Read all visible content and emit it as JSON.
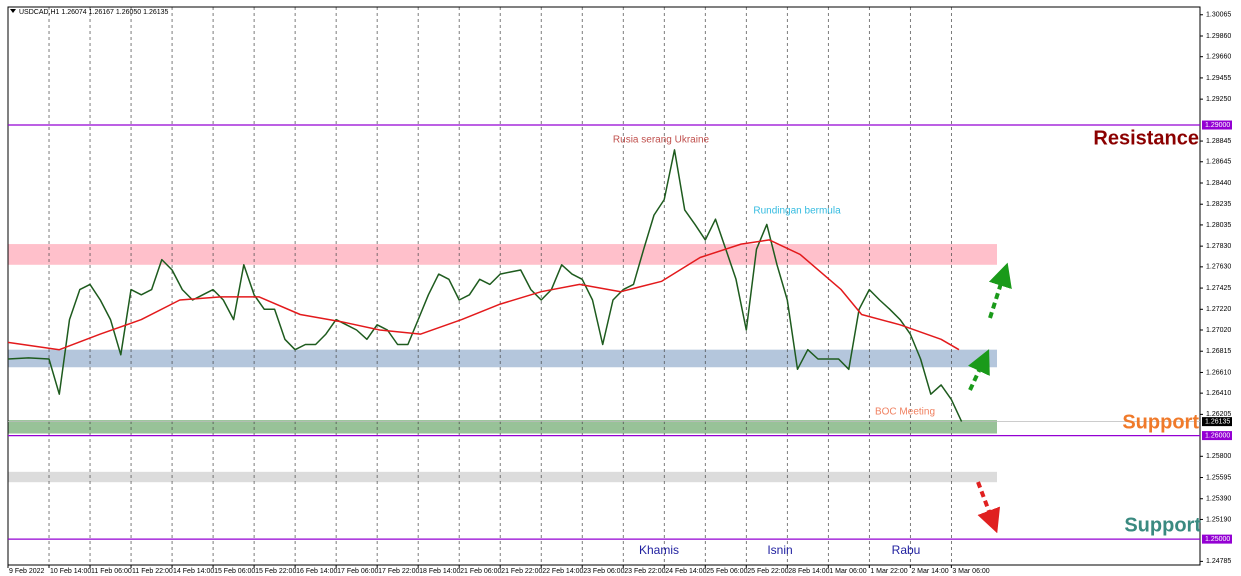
{
  "chart_data": {
    "type": "line",
    "title": "USDCAD,H1  1.26074 1.26167 1.26050 1.26135",
    "xlim": [
      0,
      465
    ],
    "ylim": [
      1.2475,
      1.3014
    ],
    "xticks": [
      {
        "value": 0,
        "label": "9 Feb 2022"
      },
      {
        "value": 16,
        "label": "10 Feb 14:00"
      },
      {
        "value": 32,
        "label": "11 Feb 06:00"
      },
      {
        "value": 48,
        "label": "11 Feb 22:00"
      },
      {
        "value": 64,
        "label": "14 Feb 14:00"
      },
      {
        "value": 80,
        "label": "15 Feb 06:00"
      },
      {
        "value": 96,
        "label": "15 Feb 22:00"
      },
      {
        "value": 112,
        "label": "16 Feb 14:00"
      },
      {
        "value": 128,
        "label": "17 Feb 06:00"
      },
      {
        "value": 144,
        "label": "17 Feb 22:00"
      },
      {
        "value": 160,
        "label": "18 Feb 14:00"
      },
      {
        "value": 176,
        "label": "21 Feb 06:00"
      },
      {
        "value": 192,
        "label": "21 Feb 22:00"
      },
      {
        "value": 208,
        "label": "22 Feb 14:00"
      },
      {
        "value": 224,
        "label": "23 Feb 06:00"
      },
      {
        "value": 240,
        "label": "23 Feb 22:00"
      },
      {
        "value": 256,
        "label": "24 Feb 14:00"
      },
      {
        "value": 272,
        "label": "25 Feb 06:00"
      },
      {
        "value": 288,
        "label": "25 Feb 22:00"
      },
      {
        "value": 304,
        "label": "28 Feb 14:00"
      },
      {
        "value": 320,
        "label": "1 Mar 06:00"
      },
      {
        "value": 336,
        "label": "1 Mar 22:00"
      },
      {
        "value": 352,
        "label": "2 Mar 14:00"
      },
      {
        "value": 368,
        "label": "3 Mar 06:00"
      }
    ],
    "yticks": [
      1.30065,
      {
        "value": 1.2986,
        "label": "1.29860"
      },
      {
        "value": 1.2966,
        "label": "1.29660"
      },
      1.29455,
      {
        "value": 1.2925,
        "label": "1.29250"
      },
      1.28845,
      1.28645,
      {
        "value": 1.2844,
        "label": "1.28440"
      },
      1.28235,
      1.28035,
      {
        "value": 1.2783,
        "label": "1.27830"
      },
      {
        "value": 1.2763,
        "label": "1.27630"
      },
      1.27425,
      {
        "value": 1.2722,
        "label": "1.27220"
      },
      {
        "value": 1.2702,
        "label": "1.27020"
      },
      1.26815,
      {
        "value": 1.2661,
        "label": "1.26610"
      },
      {
        "value": 1.2641,
        "label": "1.26410"
      },
      1.26205,
      {
        "value": 1.258,
        "label": "1.25800"
      },
      1.25595,
      {
        "value": 1.2539,
        "label": "1.25390"
      },
      {
        "value": 1.2519,
        "label": "1.25190"
      },
      1.24785
    ],
    "grid": true,
    "series": [
      {
        "color": "#1e5b1e",
        "x": [
          0,
          8,
          16,
          20,
          24,
          28,
          32,
          36,
          40,
          44,
          48,
          52,
          56,
          60,
          64,
          68,
          72,
          76,
          80,
          84,
          88,
          92,
          96,
          100,
          104,
          108,
          112,
          116,
          120,
          124,
          128,
          132,
          136,
          140,
          144,
          148,
          152,
          156,
          160,
          164,
          168,
          172,
          176,
          180,
          184,
          188,
          192,
          196,
          200,
          204,
          208,
          212,
          216,
          220,
          224,
          228,
          232,
          236,
          240,
          244,
          248,
          252,
          256,
          260,
          264,
          268,
          272,
          276,
          280,
          284,
          288,
          292,
          296,
          300,
          304,
          308,
          312,
          316,
          320,
          324,
          328,
          332,
          336,
          340,
          344,
          348,
          352,
          356,
          360,
          364,
          368,
          372
        ],
        "values": [
          1.2674,
          1.2675,
          1.2674,
          1.264,
          1.2712,
          1.2741,
          1.2746,
          1.2731,
          1.2712,
          1.2678,
          1.2741,
          1.2736,
          1.2741,
          1.277,
          1.276,
          1.2741,
          1.2731,
          1.2736,
          1.2741,
          1.2731,
          1.2712,
          1.2765,
          1.2736,
          1.2722,
          1.2722,
          1.2693,
          1.2683,
          1.2688,
          1.2688,
          1.2698,
          1.2712,
          1.2707,
          1.2702,
          1.2693,
          1.2707,
          1.2702,
          1.2688,
          1.2688,
          1.2712,
          1.2736,
          1.2756,
          1.2751,
          1.2731,
          1.2736,
          1.2751,
          1.2746,
          1.2756,
          1.2758,
          1.276,
          1.2741,
          1.2731,
          1.2741,
          1.2765,
          1.2756,
          1.2751,
          1.2731,
          1.2688,
          1.2731,
          1.2741,
          1.2746,
          1.278,
          1.2813,
          1.2828,
          1.2876,
          1.2818,
          1.2804,
          1.2789,
          1.2809,
          1.278,
          1.2751,
          1.2702,
          1.278,
          1.2804,
          1.2765,
          1.2731,
          1.2664,
          1.2683,
          1.2674,
          1.2674,
          1.2674,
          1.2664,
          1.2722,
          1.2741,
          1.2731,
          1.2722,
          1.2712,
          1.2698,
          1.2674,
          1.264,
          1.2649,
          1.2635,
          1.26135
        ]
      },
      {
        "color": "#e31a1c",
        "x": [
          0,
          20,
          36,
          52,
          67,
          83,
          98,
          114,
          130,
          145,
          161,
          177,
          192,
          208,
          223,
          239,
          255,
          270,
          286,
          297,
          309,
          325,
          333,
          348,
          364,
          371
        ],
        "values": [
          1.269,
          1.2683,
          1.2698,
          1.2712,
          1.2731,
          1.2734,
          1.2734,
          1.2717,
          1.271,
          1.2702,
          1.2698,
          1.2712,
          1.2727,
          1.2739,
          1.2746,
          1.2739,
          1.2749,
          1.2772,
          1.2785,
          1.2789,
          1.2775,
          1.2741,
          1.2717,
          1.2707,
          1.2693,
          1.2683
        ]
      }
    ],
    "zones": [
      {
        "from": 1.2765,
        "to": 1.2785,
        "color": "#ffc0cb"
      },
      {
        "from": 1.2666,
        "to": 1.2683,
        "color": "#b4c6dc"
      },
      {
        "from": 1.2602,
        "to": 1.2615,
        "color": "#98c298"
      },
      {
        "from": 1.2555,
        "to": 1.2565,
        "color": "#dcdcdc"
      }
    ],
    "hlines": [
      {
        "value": 1.29,
        "label": "1.29000",
        "color": "#9400d3"
      },
      {
        "value": 1.26,
        "label": "1.26000",
        "color": "#9400d3"
      },
      {
        "value": 1.25,
        "label": "1.25000",
        "color": "#9400d3"
      }
    ],
    "price": {
      "value": 1.26135,
      "label": "1.26135",
      "color": "#000000"
    },
    "annotations": [
      "Rusia serang Ukraine",
      "Rundingan bermula",
      "BOC Meeting",
      "Resistance",
      "Support",
      "Support",
      "Khamis",
      "Isnin",
      "Rabu"
    ]
  }
}
